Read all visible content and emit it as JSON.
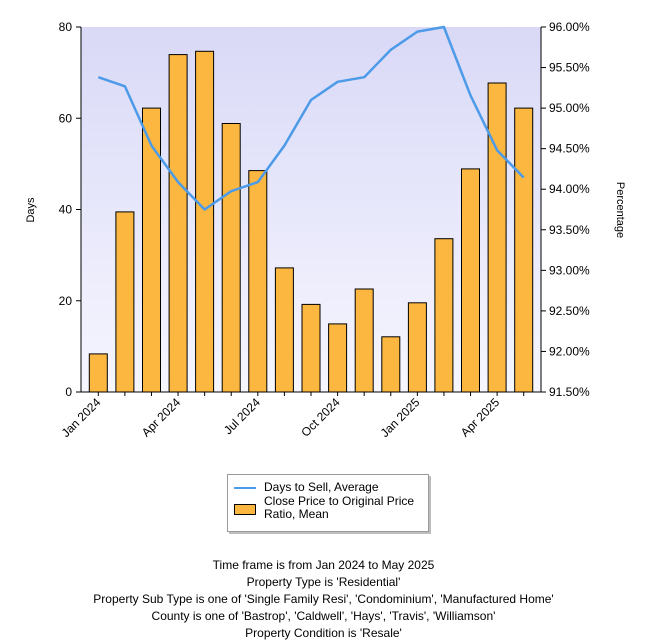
{
  "chart_data": {
    "type": "bar",
    "categories": [
      "Jan 2024",
      "Feb 2024",
      "Mar 2024",
      "Apr 2024",
      "May 2024",
      "Jun 2024",
      "Jul 2024",
      "Aug 2024",
      "Sep 2024",
      "Oct 2024",
      "Nov 2024",
      "Dec 2024",
      "Jan 2025",
      "Feb 2025",
      "Mar 2025",
      "Apr 2025",
      "May 2025"
    ],
    "x_tick_labels": [
      {
        "index": 0,
        "label": "Jan 2024"
      },
      {
        "index": 3,
        "label": "Apr 2024"
      },
      {
        "index": 6,
        "label": "Jul 2024"
      },
      {
        "index": 9,
        "label": "Oct 2024"
      },
      {
        "index": 12,
        "label": "Jan 2025"
      },
      {
        "index": 15,
        "label": "Apr 2025"
      }
    ],
    "series": [
      {
        "name": "Days to Sell, Average",
        "type": "line",
        "axis": "left",
        "color": "#4d9be8",
        "values": [
          69,
          67,
          54,
          46,
          40,
          44,
          46,
          54,
          64,
          68,
          69,
          75,
          79,
          80,
          65,
          53,
          47
        ]
      },
      {
        "name": "Close Price to Original Price Ratio, Mean",
        "type": "bar",
        "axis": "right",
        "color": "#fbb73f",
        "values": [
          91.97,
          93.72,
          95.0,
          95.66,
          95.7,
          94.81,
          94.23,
          93.03,
          92.58,
          92.34,
          92.77,
          92.18,
          92.6,
          93.39,
          94.25,
          95.31,
          95.0
        ]
      }
    ],
    "y_left": {
      "title": "Days",
      "min": 0,
      "max": 80,
      "ticks": [
        0,
        20,
        40,
        60,
        80
      ]
    },
    "y_right": {
      "title": "Percentage",
      "min": 91.5,
      "max": 96.0,
      "ticks": [
        "91.50%",
        "92.00%",
        "92.50%",
        "93.00%",
        "93.50%",
        "94.00%",
        "94.50%",
        "95.00%",
        "95.50%",
        "96.00%"
      ]
    },
    "grid": false,
    "legend_position": "bottom-center",
    "plot_background": "#e6e6fa"
  },
  "notes": [
    "Time frame is from Jan 2024 to May 2025",
    "Property Type is 'Residential'",
    "Property Sub Type is one of 'Single Family Resi', 'Condominium', 'Manufactured Home'",
    "County is one of 'Bastrop', 'Caldwell', 'Hays', 'Travis', 'Williamson'",
    "Property Condition is 'Resale'"
  ]
}
